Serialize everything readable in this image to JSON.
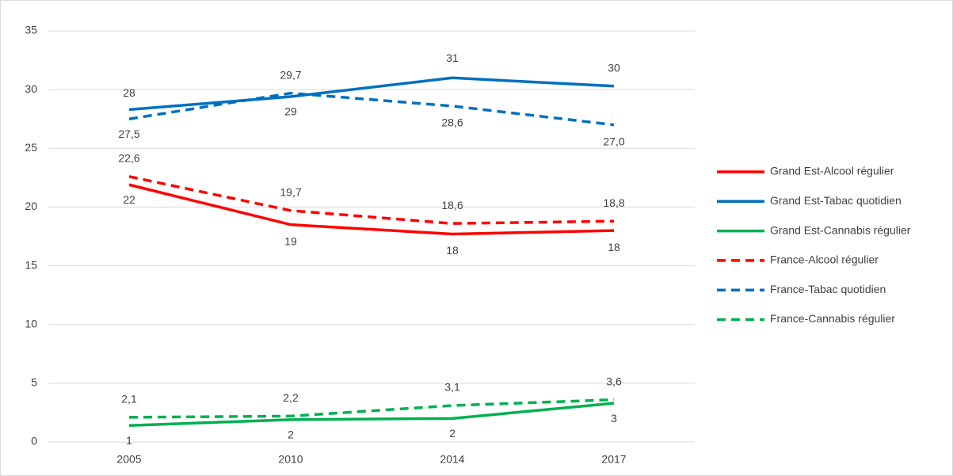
{
  "chart_data": {
    "type": "line",
    "categories": [
      "2005",
      "2010",
      "2014",
      "2017"
    ],
    "ylim": [
      0,
      35
    ],
    "yticks": [
      0,
      5,
      10,
      15,
      20,
      25,
      30,
      35
    ],
    "grid": true,
    "series": [
      {
        "name": "Grand Est-Alcool régulier",
        "color": "#ff0000",
        "dash": false,
        "values": [
          21.9,
          18.5,
          17.7,
          18.0
        ],
        "value_labels": [
          "22",
          "19",
          "18",
          "18"
        ]
      },
      {
        "name": "Grand Est-Tabac quotidien",
        "color": "#0070c0",
        "dash": false,
        "values": [
          28.3,
          29.4,
          31.0,
          30.3
        ],
        "value_labels": [
          "28",
          "29",
          "31",
          "30"
        ]
      },
      {
        "name": "Grand Est-Cannabis régulier",
        "color": "#00b050",
        "dash": false,
        "values": [
          1.4,
          1.9,
          2.0,
          3.3
        ],
        "value_labels": [
          "1",
          "2",
          "2",
          "3"
        ]
      },
      {
        "name": "France-Alcool régulier",
        "color": "#ff0000",
        "dash": true,
        "values": [
          22.6,
          19.7,
          18.6,
          18.8
        ],
        "value_labels": [
          "22,6",
          "19,7",
          "18,6",
          "18,8"
        ]
      },
      {
        "name": "France-Tabac quotidien",
        "color": "#0070c0",
        "dash": true,
        "values": [
          27.5,
          29.7,
          28.6,
          27.0
        ],
        "value_labels": [
          "27,5",
          "29,7",
          "28,6",
          "27,0"
        ]
      },
      {
        "name": "France-Cannabis régulier",
        "color": "#00b050",
        "dash": true,
        "values": [
          2.1,
          2.2,
          3.1,
          3.6
        ],
        "value_labels": [
          "2,1",
          "2,2",
          "3,1",
          "3,6"
        ]
      }
    ]
  }
}
